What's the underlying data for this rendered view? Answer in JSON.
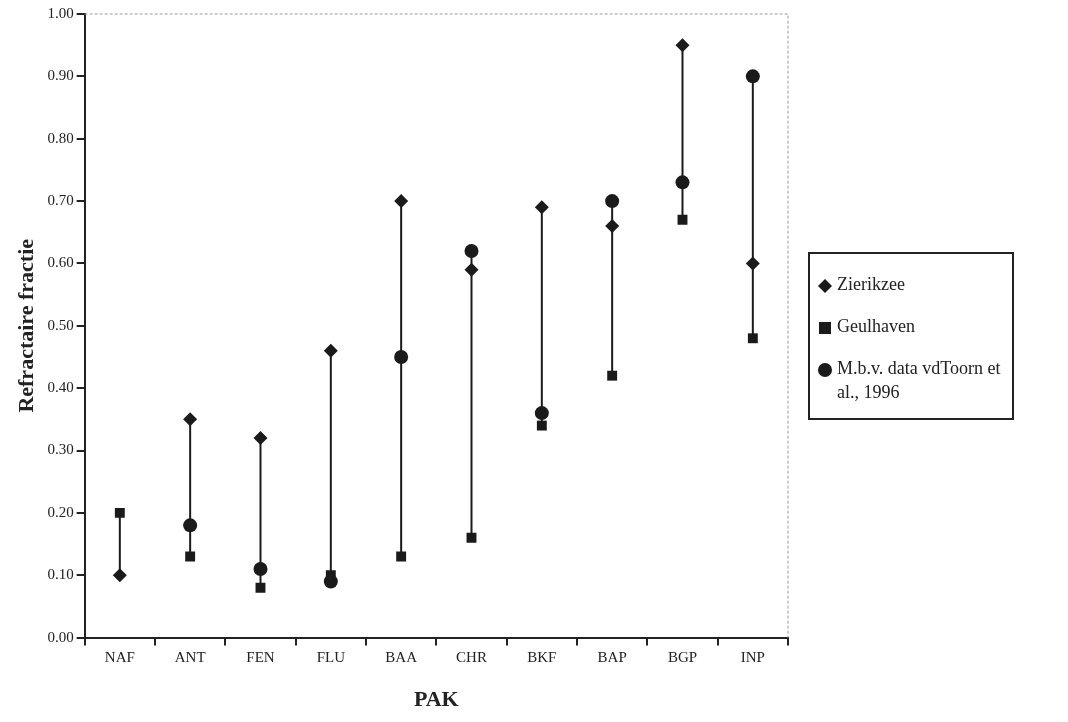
{
  "chart_data": {
    "type": "scatter",
    "xlabel": "PAK",
    "ylabel": "Refractaire fractie",
    "categories": [
      "NAF",
      "ANT",
      "FEN",
      "FLU",
      "BAA",
      "CHR",
      "BKF",
      "BAP",
      "BGP",
      "INP"
    ],
    "series": [
      {
        "name": "Zierikzee",
        "color": "#1a1a1a",
        "marker": "diamond",
        "values": [
          0.1,
          0.35,
          0.32,
          0.46,
          0.7,
          0.59,
          0.69,
          0.66,
          0.95,
          0.6
        ]
      },
      {
        "name": "Geulhaven",
        "color": "#1a1a1a",
        "marker": "square",
        "values": [
          0.2,
          0.13,
          0.08,
          0.1,
          0.13,
          0.16,
          0.34,
          0.42,
          0.67,
          0.48
        ]
      },
      {
        "name": "M.b.v. data vdToorn et al., 1996",
        "color": "#1a1a1a",
        "marker": "circle",
        "values": [
          null,
          0.18,
          0.11,
          0.09,
          0.45,
          0.62,
          0.36,
          0.7,
          0.73,
          0.9
        ]
      }
    ],
    "ylim": [
      0,
      1
    ],
    "yticks": [
      {
        "value": 0,
        "label": "0.00"
      },
      {
        "value": 0.1,
        "label": "0.10"
      },
      {
        "value": 0.2,
        "label": "0.20"
      },
      {
        "value": 0.3,
        "label": "0.30"
      },
      {
        "value": 0.4,
        "label": "0.40"
      },
      {
        "value": 0.5,
        "label": "0.50"
      },
      {
        "value": 0.6,
        "label": "0.60"
      },
      {
        "value": 0.7,
        "label": "0.70"
      },
      {
        "value": 0.8,
        "label": "0.80"
      },
      {
        "value": 0.9,
        "label": "0.90"
      },
      {
        "value": 1,
        "label": "1.00"
      }
    ],
    "grid": false,
    "legend": "right"
  }
}
